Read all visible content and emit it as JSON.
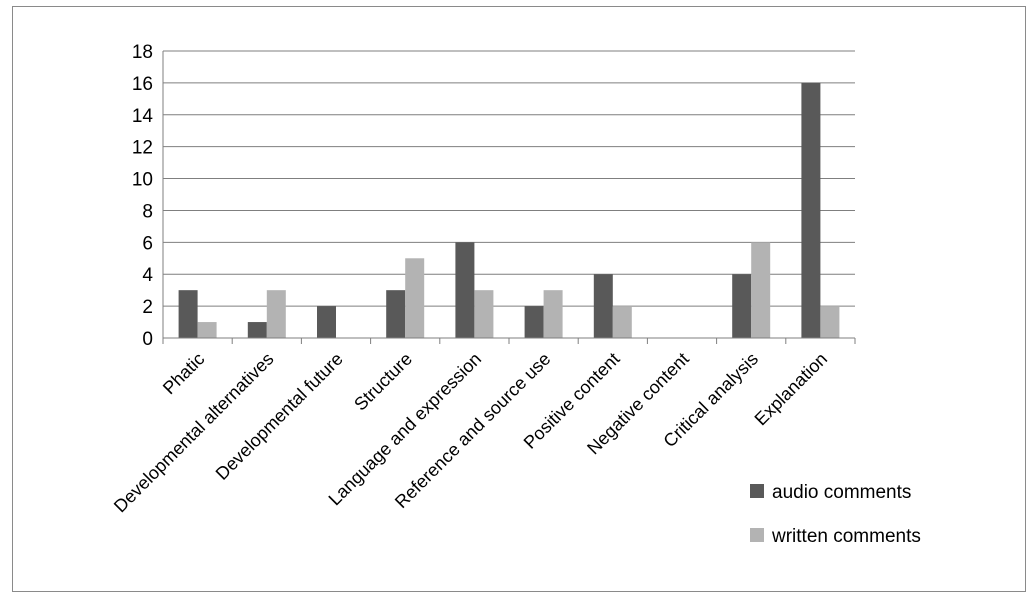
{
  "chart_data": {
    "type": "bar",
    "title": "",
    "xlabel": "",
    "ylabel": "",
    "categories": [
      "Phatic",
      "Developmental alternatives",
      "Developmental future",
      "Structure",
      "Language and expression",
      "Reference and source use",
      "Positive content",
      "Negative content",
      "Critical analysis",
      "Explanation"
    ],
    "series": [
      {
        "name": "audio comments",
        "color": "#595959",
        "values": [
          3,
          1,
          2,
          3,
          6,
          2,
          4,
          0,
          4,
          16
        ]
      },
      {
        "name": "written comments",
        "color": "#b3b3b3",
        "values": [
          1,
          3,
          0,
          5,
          3,
          3,
          2,
          0,
          6,
          2
        ]
      }
    ],
    "ylim": [
      0,
      18
    ],
    "yticks": [
      0,
      2,
      4,
      6,
      8,
      10,
      12,
      14,
      16,
      18
    ],
    "grid": true,
    "legend_position": "bottom-right"
  }
}
